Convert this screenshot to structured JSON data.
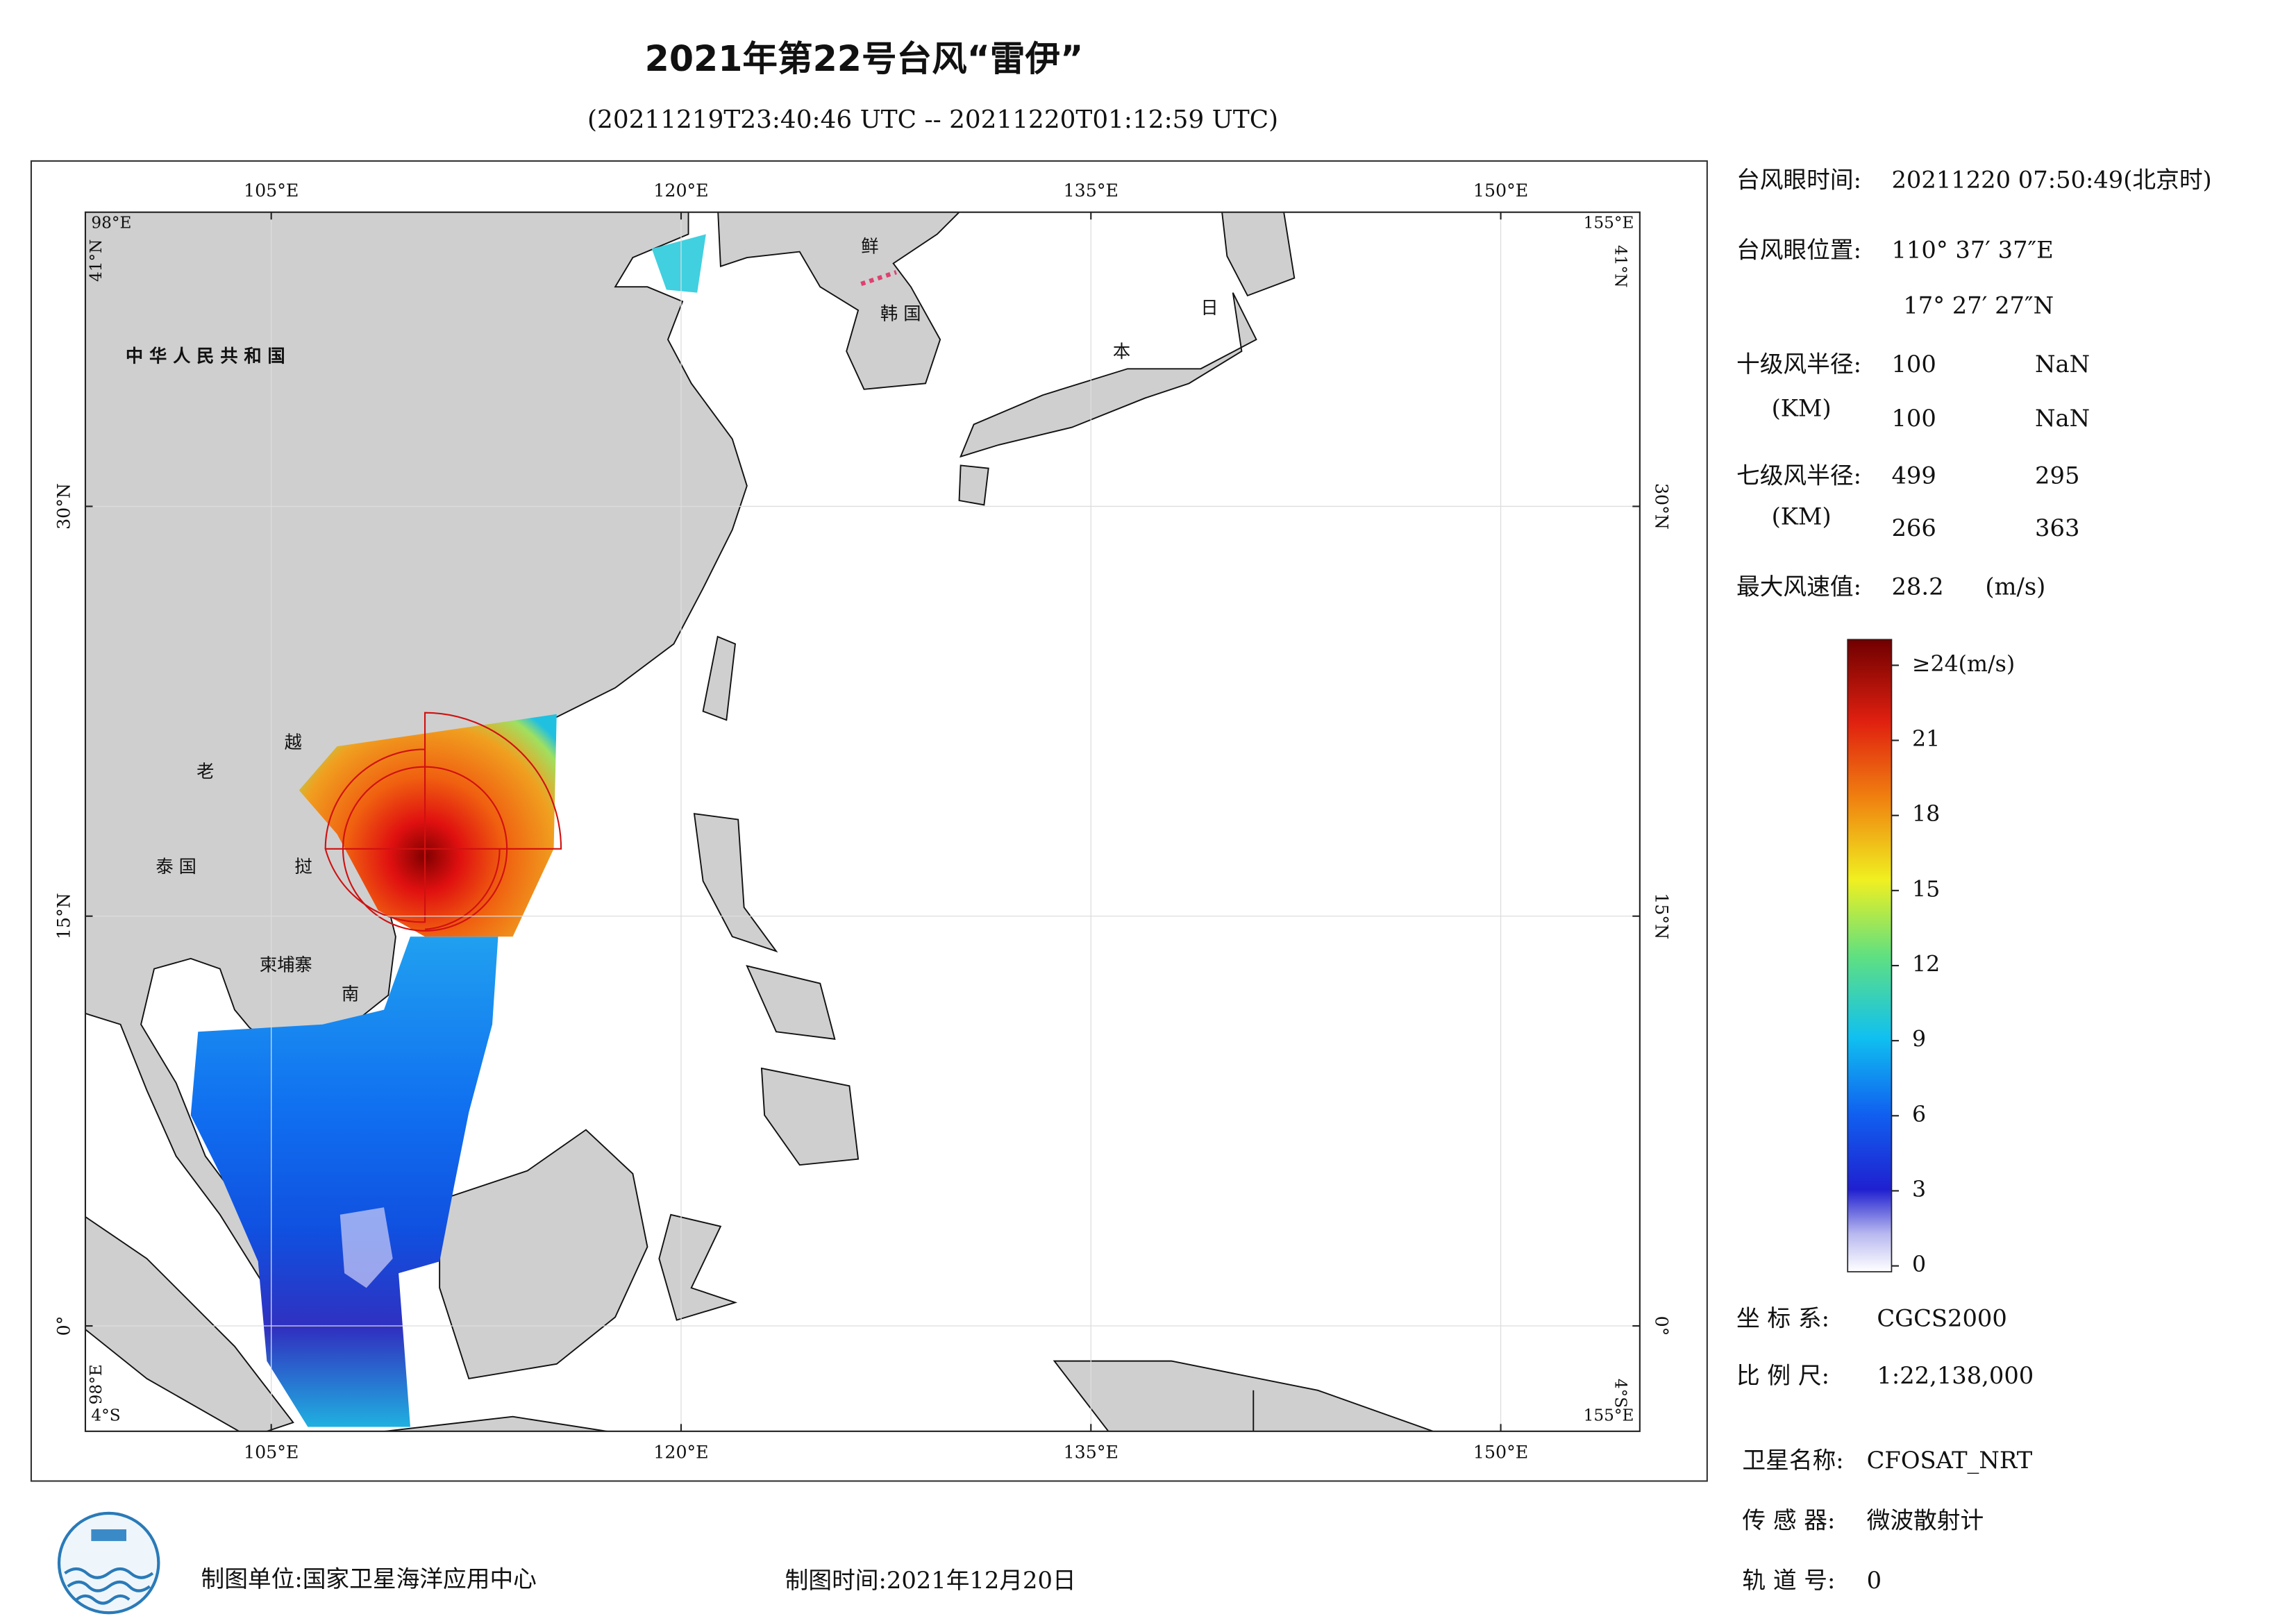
{
  "header": {
    "title": "2021年第22号台风“雷伊”",
    "subtitle": "(20211219T23:40:46 UTC -- 20211220T01:12:59 UTC)"
  },
  "map": {
    "lon_ticks": [
      {
        "value": 105,
        "label": "105°E"
      },
      {
        "value": 120,
        "label": "120°E"
      },
      {
        "value": 135,
        "label": "135°E"
      },
      {
        "value": 150,
        "label": "150°E"
      }
    ],
    "lat_ticks": [
      {
        "value": 30,
        "label": "30°N"
      },
      {
        "value": 15,
        "label": "15°N"
      },
      {
        "value": 0,
        "label": "0°"
      }
    ],
    "corners": {
      "west": "98°E",
      "east": "155°E",
      "north": "41°N",
      "south": "4°S"
    },
    "places": [
      "中 华 人 民 共 和 国",
      "老",
      "越",
      "泰 国",
      "挝",
      "柬埔寨",
      "南",
      "鲜",
      "韩 国",
      "日",
      "本"
    ]
  },
  "info": {
    "eye_time": {
      "label": "台风眼时间:",
      "value": "20211220 07:50:49(北京时)"
    },
    "eye_position": {
      "label": "台风眼位置:",
      "lon": "110° 37′ 37″E",
      "lat": "17° 27′ 27″N"
    },
    "r10": {
      "label": "十级风半径:",
      "unit": "(KM)",
      "values": [
        100,
        "NaN",
        100,
        "NaN"
      ]
    },
    "r7": {
      "label": "七级风半径:",
      "unit": "(KM)",
      "values": [
        499,
        295,
        266,
        363
      ]
    },
    "max_wind": {
      "label": "最大风速值:",
      "value": 28.2,
      "unit": "(m/s)"
    }
  },
  "legend": {
    "ticks": [
      0,
      3,
      6,
      9,
      12,
      15,
      18,
      21,
      {
        "value": 24,
        "label": "≥24(m/s)"
      }
    ]
  },
  "footer": {
    "coordinate_system": {
      "label": "坐 标 系:",
      "value": "CGCS2000"
    },
    "scale": {
      "label": "比 例 尺:",
      "value": "1:22,138,000"
    },
    "satellite": {
      "label": "卫星名称:",
      "value": "CFOSAT_NRT"
    },
    "sensor": {
      "label": "传 感 器:",
      "value": "微波散射计"
    },
    "orbit": {
      "label": "轨 道 号:",
      "value": 0
    },
    "producer": "制图单位:国家卫星海洋应用中心",
    "date": "制图时间:2021年12月20日"
  }
}
